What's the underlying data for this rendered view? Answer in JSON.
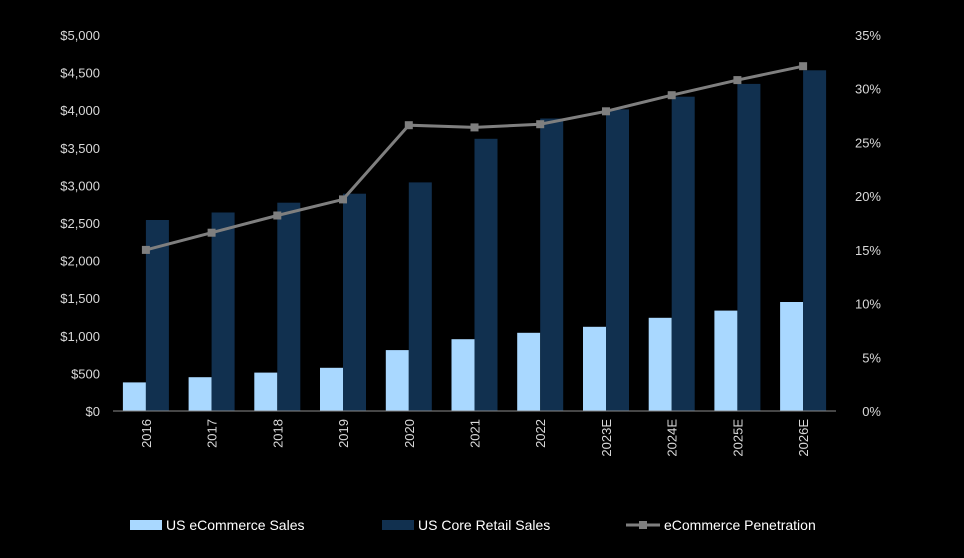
{
  "chart_data": {
    "type": "bar+line",
    "categories": [
      "2016",
      "2017",
      "2018",
      "2019",
      "2020",
      "2021",
      "2022",
      "2023E",
      "2024E",
      "2025E",
      "2026E"
    ],
    "series": [
      {
        "name": "US eCommerce Sales",
        "kind": "bar",
        "axis": "left",
        "color": "#a9d8ff",
        "values": [
          380,
          450,
          510,
          575,
          810,
          955,
          1040,
          1120,
          1240,
          1335,
          1450
        ]
      },
      {
        "name": "US Core Retail Sales",
        "kind": "bar",
        "axis": "left",
        "color": "#11304f",
        "values": [
          2540,
          2640,
          2770,
          2890,
          3040,
          3620,
          3890,
          4010,
          4180,
          4350,
          4530
        ]
      },
      {
        "name": "eCommerce Penetration",
        "kind": "line",
        "axis": "right",
        "color": "#7f7f7f",
        "values": [
          15.0,
          16.6,
          18.2,
          19.7,
          26.6,
          26.4,
          26.7,
          27.9,
          29.4,
          30.8,
          32.1
        ]
      }
    ],
    "y_left": {
      "min": 0,
      "max": 5000,
      "step": 500,
      "tick_labels": [
        "$0",
        "$500",
        "$1,000",
        "$1,500",
        "$2,000",
        "$2,500",
        "$3,000",
        "$3,500",
        "$4,000",
        "$4,500",
        "$5,000"
      ]
    },
    "y_right": {
      "min": 0,
      "max": 35,
      "step": 5,
      "tick_labels": [
        "0%",
        "5%",
        "10%",
        "15%",
        "20%",
        "25%",
        "30%",
        "35%"
      ]
    },
    "legend": {
      "placement": "bottom",
      "items": [
        "US eCommerce Sales",
        "US Core Retail Sales",
        "eCommerce Penetration"
      ]
    },
    "title": "",
    "xlabel": "",
    "ylabel": ""
  }
}
